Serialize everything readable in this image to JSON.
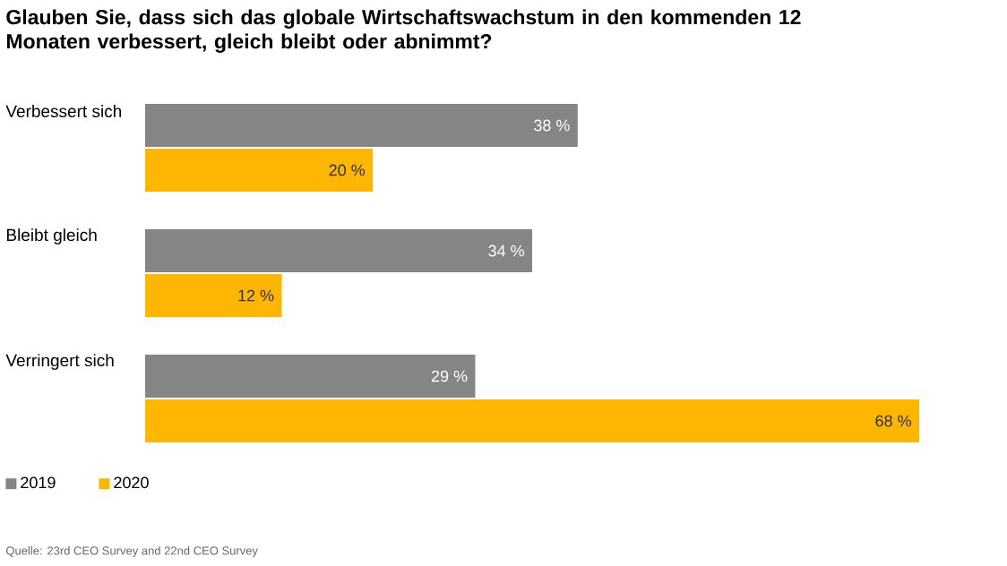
{
  "chart_data": {
    "type": "bar",
    "orientation": "horizontal",
    "title": "Glauben Sie, dass sich das globale Wirtschaftswachstum in den kommenden 12 Monaten verbessert, gleich bleibt oder abnimmt?",
    "categories": [
      "Verbessert sich",
      "Bleibt gleich",
      "Verringert sich"
    ],
    "series": [
      {
        "name": "2019",
        "color": "#858585",
        "values": [
          38,
          34,
          29
        ],
        "value_labels": [
          "38 %",
          "34 %",
          "29 %"
        ]
      },
      {
        "name": "2020",
        "color": "#ffb600",
        "values": [
          20,
          12,
          68
        ],
        "value_labels": [
          "20 %",
          "12 %",
          "68 %"
        ]
      }
    ],
    "legend": "bottom left",
    "annotations": [
      "Quelle: 23rd CEO Survey and 22nd CEO Survey"
    ]
  }
}
